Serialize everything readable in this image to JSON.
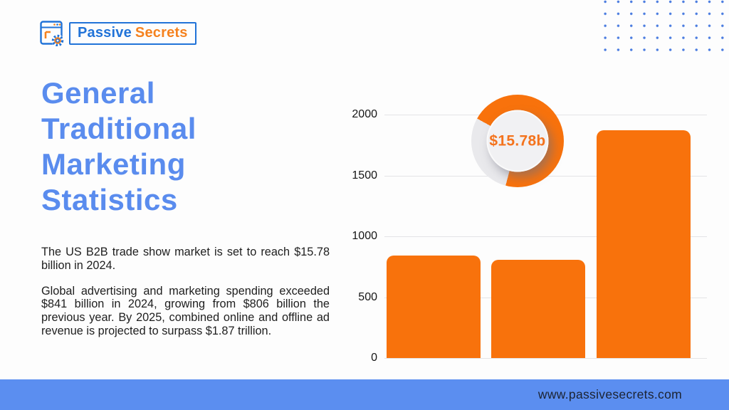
{
  "brand": {
    "name_primary": "Passive",
    "name_secondary": "Secrets"
  },
  "title_lines": [
    "General",
    "Traditional",
    "Marketing",
    "Statistics"
  ],
  "paragraphs": [
    "The US B2B trade show market is set to reach $15.78 billion in 2024.",
    "Global advertising and marketing spending exceeded $841 billion in 2024, growing from $806 billion the previous year. By 2025, combined online and offline ad revenue is projected to surpass $1.87 trillion."
  ],
  "footer": {
    "website": "www.passivesecrets.com"
  },
  "colors": {
    "accent_orange": "#f8720c",
    "heading_blue": "#5a8cee",
    "footer_blue": "#5b8ef0",
    "dot_blue": "#4a7ce0",
    "logo_blue": "#2173d8",
    "logo_orange": "#f5821f"
  },
  "chart_data": [
    {
      "type": "bar",
      "categories": [
        "",
        "",
        ""
      ],
      "values": [
        841,
        806,
        1870
      ],
      "title": "",
      "xlabel": "",
      "ylabel": "",
      "ylim": [
        0,
        2000
      ],
      "yticks": [
        0,
        500,
        1000,
        1500,
        2000
      ],
      "bar_color": "#f8720c",
      "grid": true,
      "legend": "none"
    },
    {
      "type": "donut",
      "label": "$15.78b",
      "segments": [
        {
          "name": "filled",
          "value": 71,
          "color": "#f8720c"
        },
        {
          "name": "remainder",
          "value": 29,
          "color": "#e9e9ec"
        }
      ],
      "gap_start_deg": 195,
      "gap_end_deg": 299
    }
  ]
}
